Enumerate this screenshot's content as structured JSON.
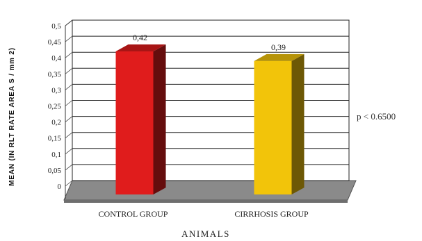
{
  "chart_data": {
    "type": "bar",
    "categories": [
      "CONTROL GROUP",
      "CIRRHOSIS GROUP"
    ],
    "values": [
      0.42,
      0.39
    ],
    "data_labels": [
      "0,42",
      "0,39"
    ],
    "xlabel": "ANIMALS",
    "ylabel": "MEAN (IN RLT RATE AREA S / mm 2)",
    "ylim": [
      0,
      0.5
    ],
    "yticks": [
      "0",
      "0,05",
      "0,1",
      "0,15",
      "0,2",
      "0,25",
      "0,3",
      "0,35",
      "0,4",
      "0,45",
      "0,5"
    ],
    "grid": true,
    "style": "3d-bar",
    "bar_colors": [
      "#e01c1c",
      "#f2c40a"
    ],
    "annotation": "p < 0.6500"
  }
}
